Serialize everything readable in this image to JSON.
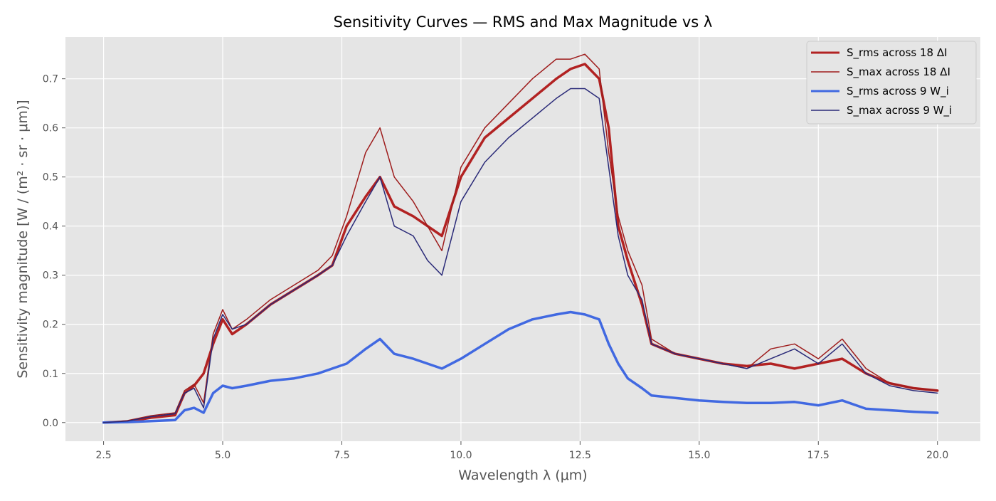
{
  "chart_data": {
    "type": "line",
    "title": "Sensitivity Curves — RMS and Max Magnitude vs λ",
    "xlabel": "Wavelength λ (μm)",
    "ylabel": "Sensitivity magnitude [W / (m² · sr · μm)]",
    "xlim": [
      1.7,
      20.9
    ],
    "ylim": [
      -0.038,
      0.785
    ],
    "xticks": [
      2.5,
      5.0,
      7.5,
      10.0,
      12.5,
      15.0,
      17.5,
      20.0
    ],
    "xtick_labels": [
      "2.5",
      "5.0",
      "7.5",
      "10.0",
      "12.5",
      "15.0",
      "17.5",
      "20.0"
    ],
    "yticks": [
      0.0,
      0.1,
      0.2,
      0.3,
      0.4,
      0.5,
      0.6,
      0.7
    ],
    "ytick_labels": [
      "0.0",
      "0.1",
      "0.2",
      "0.3",
      "0.4",
      "0.5",
      "0.6",
      "0.7"
    ],
    "grid": true,
    "legend_position": "top-right",
    "x": [
      2.5,
      3.0,
      3.5,
      4.0,
      4.2,
      4.4,
      4.6,
      4.8,
      5.0,
      5.2,
      5.5,
      6.0,
      6.5,
      7.0,
      7.3,
      7.6,
      8.0,
      8.3,
      8.6,
      9.0,
      9.3,
      9.6,
      10.0,
      10.5,
      11.0,
      11.5,
      12.0,
      12.3,
      12.6,
      12.9,
      13.1,
      13.3,
      13.5,
      13.8,
      14.0,
      14.5,
      15.0,
      15.5,
      16.0,
      16.5,
      17.0,
      17.5,
      18.0,
      18.5,
      19.0,
      19.5,
      20.0
    ],
    "series": [
      {
        "name": "S_rms across 18 ΔI",
        "color": "#b22222",
        "width": 3.5,
        "values": [
          0.0,
          0.002,
          0.01,
          0.015,
          0.06,
          0.075,
          0.1,
          0.16,
          0.21,
          0.18,
          0.2,
          0.24,
          0.27,
          0.3,
          0.32,
          0.4,
          0.46,
          0.5,
          0.44,
          0.42,
          0.4,
          0.38,
          0.5,
          0.58,
          0.62,
          0.66,
          0.7,
          0.72,
          0.73,
          0.7,
          0.6,
          0.4,
          0.33,
          0.24,
          0.16,
          0.14,
          0.13,
          0.12,
          0.115,
          0.12,
          0.11,
          0.12,
          0.13,
          0.1,
          0.08,
          0.07,
          0.065
        ]
      },
      {
        "name": "S_max across 18 ΔI",
        "color": "#9e1c1c",
        "width": 1.5,
        "values": [
          0.0,
          0.004,
          0.014,
          0.02,
          0.065,
          0.078,
          0.04,
          0.18,
          0.23,
          0.19,
          0.21,
          0.25,
          0.28,
          0.31,
          0.34,
          0.42,
          0.55,
          0.6,
          0.5,
          0.45,
          0.4,
          0.35,
          0.52,
          0.6,
          0.65,
          0.7,
          0.74,
          0.74,
          0.75,
          0.72,
          0.55,
          0.42,
          0.35,
          0.28,
          0.17,
          0.14,
          0.13,
          0.12,
          0.11,
          0.15,
          0.16,
          0.13,
          0.17,
          0.11,
          0.08,
          0.07,
          0.065
        ]
      },
      {
        "name": "S_rms across 9 W_i",
        "color": "#4169e1",
        "width": 3.5,
        "values": [
          0.0,
          0.001,
          0.003,
          0.005,
          0.025,
          0.03,
          0.02,
          0.06,
          0.075,
          0.07,
          0.075,
          0.085,
          0.09,
          0.1,
          0.11,
          0.12,
          0.15,
          0.17,
          0.14,
          0.13,
          0.12,
          0.11,
          0.13,
          0.16,
          0.19,
          0.21,
          0.22,
          0.225,
          0.22,
          0.21,
          0.16,
          0.12,
          0.09,
          0.07,
          0.055,
          0.05,
          0.045,
          0.042,
          0.04,
          0.04,
          0.042,
          0.035,
          0.045,
          0.028,
          0.025,
          0.022,
          0.02
        ]
      },
      {
        "name": "S_max across 9 W_i",
        "color": "#2a2a78",
        "width": 1.5,
        "values": [
          0.0,
          0.003,
          0.012,
          0.018,
          0.06,
          0.07,
          0.03,
          0.17,
          0.22,
          0.19,
          0.2,
          0.24,
          0.27,
          0.3,
          0.32,
          0.38,
          0.45,
          0.5,
          0.4,
          0.38,
          0.33,
          0.3,
          0.45,
          0.53,
          0.58,
          0.62,
          0.66,
          0.68,
          0.68,
          0.66,
          0.52,
          0.38,
          0.3,
          0.25,
          0.16,
          0.14,
          0.13,
          0.12,
          0.11,
          0.13,
          0.15,
          0.12,
          0.16,
          0.1,
          0.075,
          0.065,
          0.06
        ]
      }
    ]
  }
}
